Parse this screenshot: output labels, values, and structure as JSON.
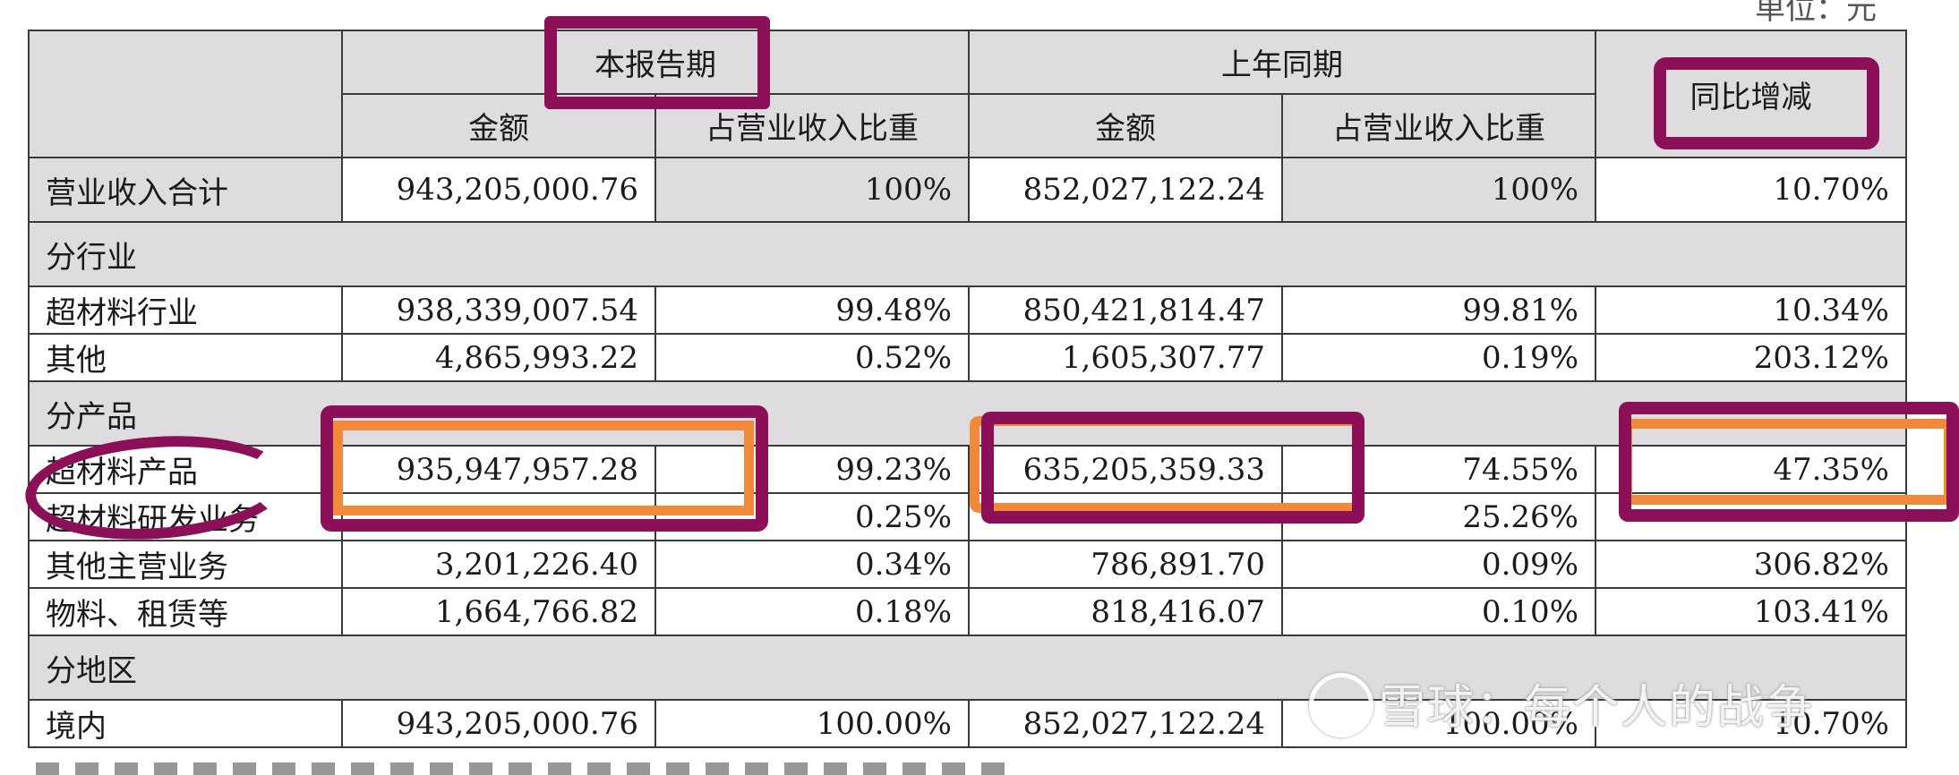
{
  "top_note": "单位：元",
  "header": {
    "current_period": "本报告期",
    "prior_period": "上年同期",
    "yoy_change": "同比增减",
    "amount": "金额",
    "share_of_revenue": "占营业收入比重"
  },
  "rows": {
    "total": {
      "label": "营业收入合计",
      "cur_amt": "943,205,000.76",
      "cur_pct": "100%",
      "prev_amt": "852,027,122.24",
      "prev_pct": "100%",
      "yoy": "10.70%"
    },
    "sec_industry": "分行业",
    "ind1": {
      "label": "超材料行业",
      "cur_amt": "938,339,007.54",
      "cur_pct": "99.48%",
      "prev_amt": "850,421,814.47",
      "prev_pct": "99.81%",
      "yoy": "10.34%"
    },
    "ind2": {
      "label": "其他",
      "cur_amt": "4,865,993.22",
      "cur_pct": "0.52%",
      "prev_amt": "1,605,307.77",
      "prev_pct": "0.19%",
      "yoy": "203.12%"
    },
    "sec_product": "分产品",
    "prod1": {
      "label": "超材料产品",
      "cur_amt": "935,947,957.28",
      "cur_pct": "99.23%",
      "prev_amt": "635,205,359.33",
      "prev_pct": "74.55%",
      "yoy": "47.35%"
    },
    "prod2": {
      "label": "超材料研发业务",
      "cur_amt": "",
      "cur_pct": "0.25%",
      "prev_amt": "",
      "prev_pct": "25.26%",
      "yoy": ""
    },
    "prod3": {
      "label": "其他主营业务",
      "cur_amt": "3,201,226.40",
      "cur_pct": "0.34%",
      "prev_amt": "786,891.70",
      "prev_pct": "0.09%",
      "yoy": "306.82%"
    },
    "prod4": {
      "label": "物料、租赁等",
      "cur_amt": "1,664,766.82",
      "cur_pct": "0.18%",
      "prev_amt": "818,416.07",
      "prev_pct": "0.10%",
      "yoy": "103.41%"
    },
    "sec_region": "分地区",
    "reg1": {
      "label": "境内",
      "cur_amt": "943,205,000.76",
      "cur_pct": "100.00%",
      "prev_amt": "852,027,122.24",
      "prev_pct": "100.00%",
      "yoy": "10.70%"
    }
  },
  "watermark": "雪球：每个人的战争",
  "colors": {
    "annotation_magenta": "#8b1057",
    "annotation_orange": "#f1893b",
    "header_gray": "#dedcdf"
  }
}
